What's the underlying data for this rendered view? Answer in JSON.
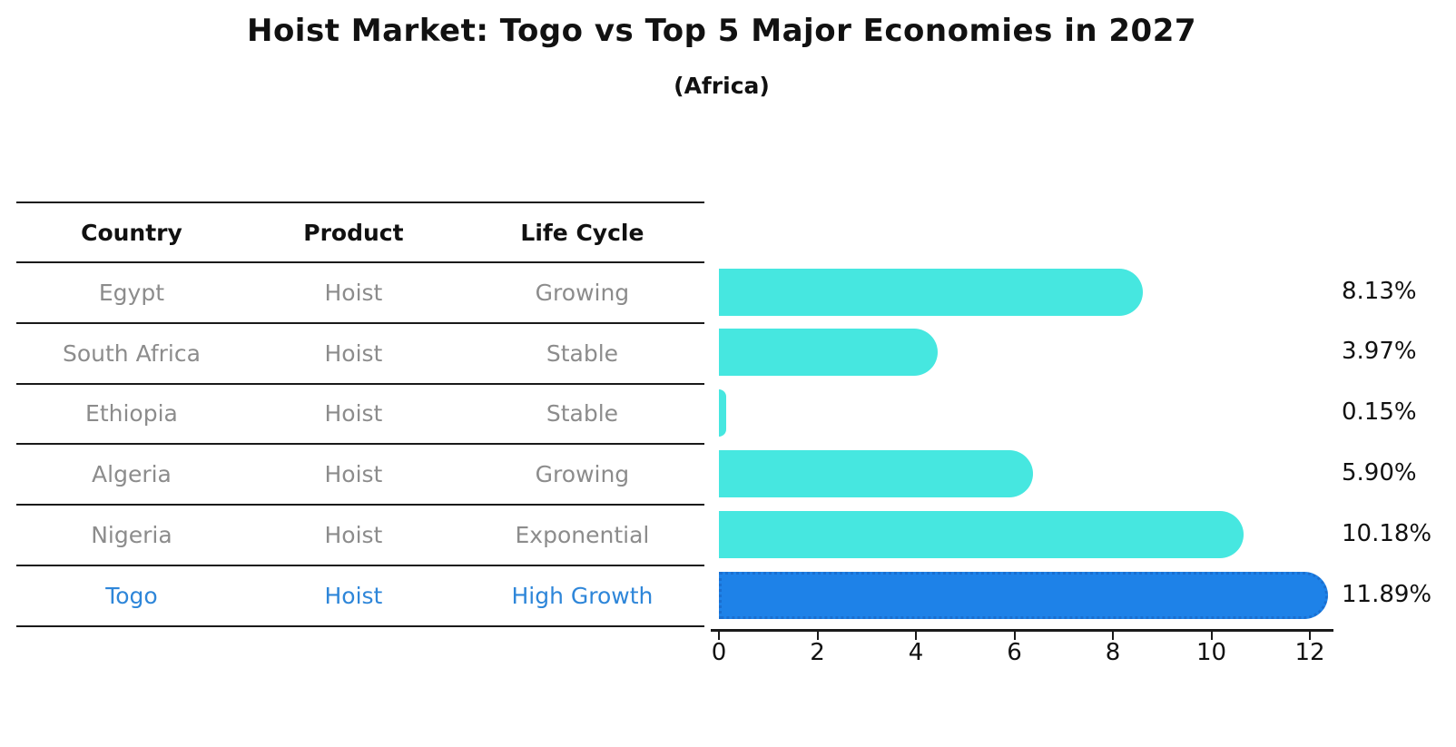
{
  "title": "Hoist Market: Togo vs Top 5 Major Economies in 2027",
  "subtitle": "(Africa)",
  "table": {
    "headers": [
      "Country",
      "Product",
      "Life Cycle"
    ],
    "rows": [
      {
        "country": "Egypt",
        "product": "Hoist",
        "life_cycle": "Growing",
        "highlight": false
      },
      {
        "country": "South Africa",
        "product": "Hoist",
        "life_cycle": "Stable",
        "highlight": false
      },
      {
        "country": "Ethiopia",
        "product": "Hoist",
        "life_cycle": "Stable",
        "highlight": false
      },
      {
        "country": "Algeria",
        "product": "Hoist",
        "life_cycle": "Growing",
        "highlight": false
      },
      {
        "country": "Nigeria",
        "product": "Hoist",
        "life_cycle": "Exponential",
        "highlight": false
      },
      {
        "country": "Togo",
        "product": "Hoist",
        "life_cycle": "High Growth",
        "highlight": true
      }
    ]
  },
  "chart_data": {
    "type": "bar",
    "orientation": "horizontal",
    "title": "Hoist Market: Togo vs Top 5 Major Economies in 2027",
    "subtitle": "(Africa)",
    "categories": [
      "Egypt",
      "South Africa",
      "Ethiopia",
      "Algeria",
      "Nigeria",
      "Togo"
    ],
    "values": [
      8.13,
      3.97,
      0.15,
      5.9,
      10.18,
      11.89
    ],
    "value_labels": [
      "8.13%",
      "3.97%",
      "0.15%",
      "5.90%",
      "10.18%",
      "11.89%"
    ],
    "xlabel": "",
    "ylabel": "",
    "xticks": [
      0,
      2,
      4,
      6,
      8,
      10,
      12
    ],
    "xlim": [
      0,
      12.45
    ],
    "grid": false,
    "legend": null,
    "highlight_index": 5,
    "bar_color": "#46E7E0",
    "highlight_bar_color": "#1E82E8",
    "highlight_edge_color": "#1A6FD0",
    "highlight_text_color": "#2E86D9",
    "row_text_color": "#8C8C8C",
    "header_text_color": "#111111"
  }
}
